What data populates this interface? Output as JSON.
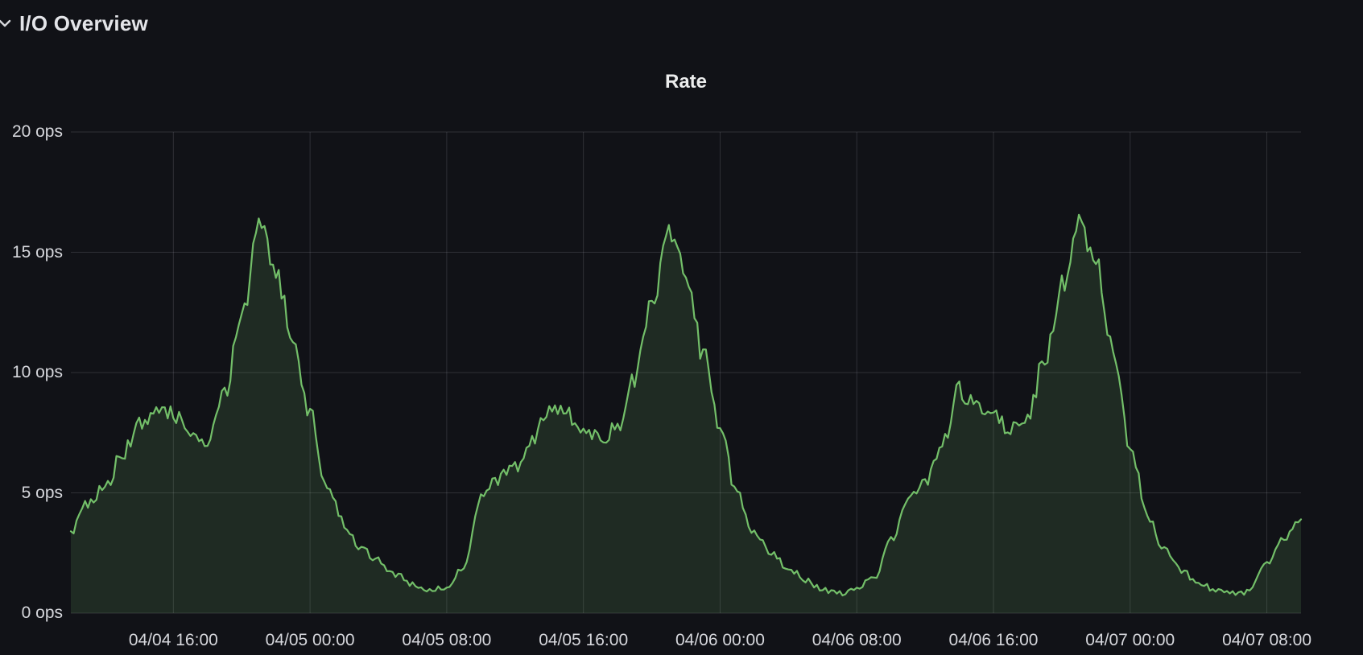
{
  "header": {
    "title": "I/O Overview",
    "collapsed": false
  },
  "colors": {
    "background": "#111217",
    "grid": "rgba(204,204,220,0.16)",
    "axis_text": "#d6d7dc",
    "title_text": "#eceded",
    "series_line": "#73bf69",
    "series_fill": "rgba(115,191,105,0.15)"
  },
  "chart_data": {
    "type": "area",
    "title": "Rate",
    "unit": "ops",
    "ylim": [
      0,
      20
    ],
    "grid": true,
    "legend": "none",
    "x_start": "04/04 10:00",
    "x_end": "04/07 10:00",
    "interval_hours": 1,
    "y_ticks": [
      {
        "label": "0 ops",
        "value": 0
      },
      {
        "label": "5 ops",
        "value": 5
      },
      {
        "label": "10 ops",
        "value": 10
      },
      {
        "label": "15 ops",
        "value": 15
      },
      {
        "label": "20 ops",
        "value": 20
      }
    ],
    "x_ticks": [
      {
        "label": "04/04 16:00",
        "t": 6
      },
      {
        "label": "04/05 00:00",
        "t": 14
      },
      {
        "label": "04/05 08:00",
        "t": 22
      },
      {
        "label": "04/05 16:00",
        "t": 30
      },
      {
        "label": "04/06 00:00",
        "t": 38
      },
      {
        "label": "04/06 08:00",
        "t": 46
      },
      {
        "label": "04/06 16:00",
        "t": 54
      },
      {
        "label": "04/07 00:00",
        "t": 62
      },
      {
        "label": "04/07 08:00",
        "t": 70
      }
    ],
    "series": [
      {
        "name": "rate",
        "color": "#73bf69",
        "fill": "rgba(115,191,105,0.15)",
        "values": [
          3.4,
          4.6,
          5.2,
          6.6,
          7.8,
          8.6,
          8.3,
          7.6,
          7.1,
          9.2,
          12.2,
          15.9,
          14.4,
          11.2,
          8.4,
          5.2,
          3.7,
          2.7,
          2.2,
          1.6,
          1.15,
          0.95,
          1.05,
          1.9,
          4.8,
          5.6,
          6.1,
          7.3,
          8.5,
          8.3,
          7.7,
          7.2,
          7.7,
          9.8,
          12.8,
          15.6,
          14.0,
          10.8,
          7.6,
          4.9,
          3.3,
          2.5,
          1.9,
          1.35,
          1.0,
          0.85,
          0.95,
          1.5,
          3.0,
          4.8,
          5.5,
          7.0,
          9.3,
          8.5,
          8.4,
          7.6,
          8.1,
          10.6,
          13.6,
          16.0,
          14.6,
          11.0,
          7.0,
          4.1,
          2.6,
          1.8,
          1.25,
          0.95,
          0.85,
          0.9,
          2.1,
          3.2,
          3.9
        ]
      }
    ]
  }
}
